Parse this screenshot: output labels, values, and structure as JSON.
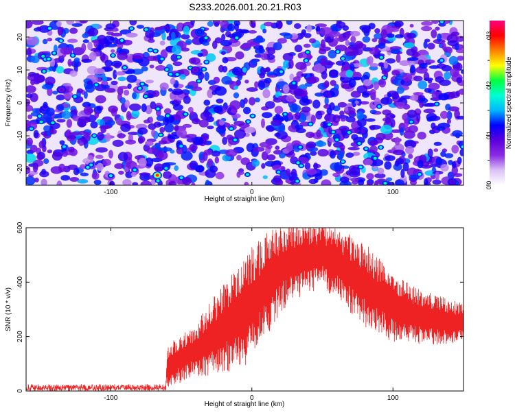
{
  "title": "S233.2026.001.20.21.R03",
  "chart_data": [
    {
      "type": "heatmap",
      "name": "spectrogram",
      "xlabel": "Height of straight line (km)",
      "ylabel": "Frequency (Hz)",
      "xlim": [
        -160,
        150
      ],
      "ylim": [
        -25,
        25
      ],
      "xticks": [
        -100,
        0,
        100
      ],
      "yticks": [
        -20,
        -10,
        0,
        10,
        20
      ],
      "colorbar": {
        "label": "Normalized spectral amplitude",
        "range": [
          0.0,
          0.33
        ],
        "ticks": [
          0.0,
          0.1,
          0.2,
          0.3
        ],
        "tick_labels": [
          "0.0",
          "0.1",
          "0.2",
          "0.3"
        ],
        "colormap": [
          "#ffffff",
          "#d9c2f5",
          "#8a2be2",
          "#5a00dc",
          "#0000ff",
          "#00b8ff",
          "#00ffd0",
          "#00ff40",
          "#ffff00",
          "#ff7f00",
          "#ff0000",
          "#ff0080"
        ]
      },
      "background_level": 0.03,
      "bright_spots": [
        {
          "x": -67,
          "y": -22,
          "v": 0.29
        },
        {
          "x": -37,
          "y": 21.5,
          "v": 0.13
        },
        {
          "x": -37,
          "y": -20,
          "v": 0.12
        },
        {
          "x": -24,
          "y": -2,
          "v": 0.12
        },
        {
          "x": 58,
          "y": 9,
          "v": 0.11
        },
        {
          "x": 142,
          "y": -24,
          "v": 0.1
        },
        {
          "x": -135,
          "y": 4,
          "v": 0.09
        },
        {
          "x": -40,
          "y": 10,
          "v": 0.09
        }
      ]
    },
    {
      "type": "line",
      "name": "snr",
      "xlabel": "Height of straight line (km)",
      "ylabel": "SNR (10 * v/v)",
      "xlim": [
        -160,
        150
      ],
      "ylim": [
        0,
        600
      ],
      "xticks": [
        -100,
        0,
        100
      ],
      "yticks": [
        0,
        200,
        400,
        600
      ],
      "color": "#ee2222",
      "envelope": {
        "x": [
          -160,
          -61,
          -60,
          -40,
          -20,
          0,
          20,
          30,
          50,
          60,
          80,
          100,
          120,
          150
        ],
        "mean": [
          12,
          12,
          90,
          150,
          230,
          320,
          450,
          480,
          500,
          470,
          390,
          310,
          270,
          250
        ],
        "amplitude": [
          12,
          12,
          70,
          90,
          150,
          200,
          150,
          130,
          110,
          120,
          140,
          120,
          90,
          70
        ]
      }
    }
  ]
}
